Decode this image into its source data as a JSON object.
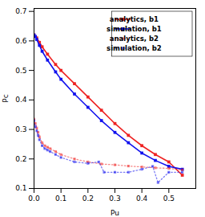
{
  "chart_data": {
    "type": "line",
    "xlabel": "Pu",
    "ylabel": "Pc",
    "xlim": [
      0,
      0.6
    ],
    "ylim": [
      0.1,
      0.71
    ],
    "xticks": [
      {
        "value": 0,
        "label": "0.0"
      },
      0.1,
      0.2,
      0.3,
      0.4,
      0.5
    ],
    "yticks": [
      0.1,
      0.2,
      0.3,
      0.4,
      0.5,
      0.6,
      0.7
    ],
    "grid": false,
    "legend": "upper right",
    "series": [
      {
        "name": "analytics, b1",
        "color": "#EE2222",
        "line_style": "solid",
        "marker": "square",
        "x": [
          0.0,
          0.01,
          0.02,
          0.03,
          0.05,
          0.08,
          0.1,
          0.15,
          0.2,
          0.25,
          0.3,
          0.35,
          0.4,
          0.45,
          0.5,
          0.55
        ],
        "values": [
          0.62,
          0.61,
          0.595,
          0.58,
          0.555,
          0.52,
          0.5,
          0.455,
          0.41,
          0.365,
          0.32,
          0.28,
          0.245,
          0.215,
          0.19,
          0.145
        ]
      },
      {
        "name": "simulation, b1",
        "color": "#1111EE",
        "line_style": "solid",
        "marker": "square",
        "x": [
          0.0,
          0.005,
          0.01,
          0.02,
          0.03,
          0.05,
          0.08,
          0.1,
          0.15,
          0.2,
          0.25,
          0.3,
          0.35,
          0.4,
          0.45,
          0.5,
          0.55
        ],
        "values": [
          0.62,
          0.615,
          0.605,
          0.585,
          0.565,
          0.535,
          0.495,
          0.47,
          0.42,
          0.375,
          0.33,
          0.29,
          0.255,
          0.22,
          0.195,
          0.175,
          0.165
        ]
      },
      {
        "name": "analytics, b2",
        "color": "#EE2222",
        "line_style": "dotted",
        "marker": "square",
        "x": [
          0.0,
          0.005,
          0.01,
          0.015,
          0.02,
          0.03,
          0.04,
          0.05,
          0.06,
          0.08,
          0.1,
          0.15,
          0.2,
          0.25,
          0.3,
          0.35,
          0.4,
          0.45,
          0.5,
          0.55
        ],
        "values": [
          0.335,
          0.32,
          0.305,
          0.29,
          0.275,
          0.255,
          0.245,
          0.24,
          0.235,
          0.225,
          0.215,
          0.2,
          0.19,
          0.183,
          0.18,
          0.176,
          0.173,
          0.17,
          0.168,
          0.163
        ]
      },
      {
        "name": "simulation, b2",
        "color": "#1111EE",
        "line_style": "dotted",
        "marker": "square",
        "x": [
          0.0,
          0.005,
          0.01,
          0.015,
          0.02,
          0.03,
          0.04,
          0.05,
          0.06,
          0.08,
          0.1,
          0.15,
          0.2,
          0.24,
          0.26,
          0.3,
          0.35,
          0.4,
          0.44,
          0.46,
          0.5,
          0.55
        ],
        "values": [
          0.33,
          0.31,
          0.295,
          0.28,
          0.265,
          0.245,
          0.235,
          0.23,
          0.225,
          0.215,
          0.205,
          0.19,
          0.185,
          0.19,
          0.155,
          0.155,
          0.155,
          0.165,
          0.175,
          0.12,
          0.155,
          0.155
        ]
      }
    ]
  }
}
